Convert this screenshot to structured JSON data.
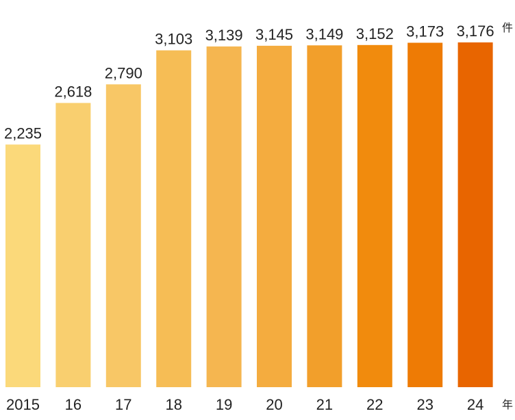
{
  "chart_data": {
    "type": "bar",
    "title": "",
    "xlabel": "",
    "ylabel": "",
    "categories": [
      "2015",
      "16",
      "17",
      "18",
      "19",
      "20",
      "21",
      "22",
      "23",
      "24"
    ],
    "values": [
      2235,
      2618,
      2790,
      3103,
      3139,
      3145,
      3149,
      3152,
      3173,
      3176
    ],
    "value_labels": [
      "2,235",
      "2,618",
      "2,790",
      "3,103",
      "3,139",
      "3,145",
      "3,149",
      "3,152",
      "3,173",
      "3,176"
    ],
    "y_unit": "件",
    "x_unit": "年",
    "ylim": [
      0,
      3176
    ],
    "grid": false,
    "legend": "none",
    "bar_colors": [
      "#fbd97a",
      "#f9cf6f",
      "#f8c766",
      "#f6bd55",
      "#f5b650",
      "#f4ac3f",
      "#f29f2b",
      "#f18b0d",
      "#ee7b05",
      "#e86500"
    ]
  }
}
